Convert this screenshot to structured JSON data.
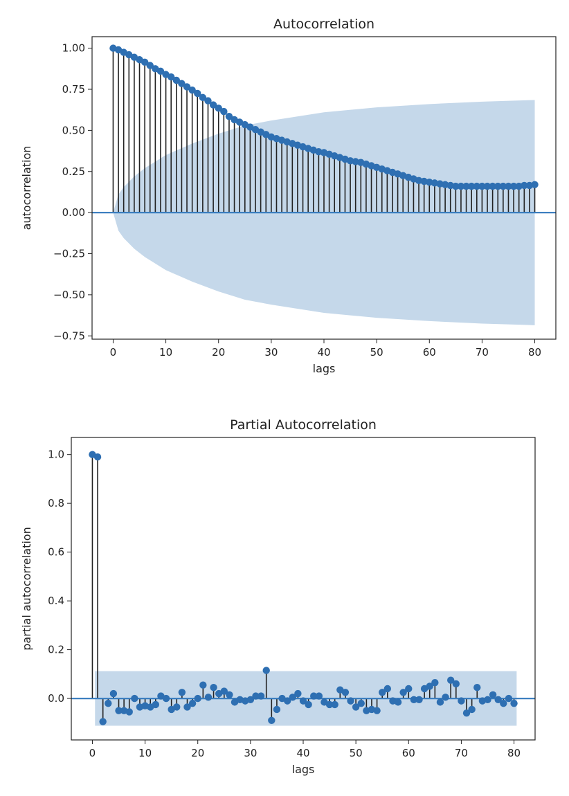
{
  "chart_data": [
    {
      "type": "stem",
      "title": "Autocorrelation",
      "xlabel": "lags",
      "ylabel": "autocorrelation",
      "xlim": [
        -4,
        84
      ],
      "ylim": [
        -0.77,
        1.07
      ],
      "xticks": [
        0,
        10,
        20,
        30,
        40,
        50,
        60,
        70,
        80
      ],
      "yticks": [
        -0.75,
        -0.5,
        -0.25,
        0.0,
        0.25,
        0.5,
        0.75,
        1.0
      ],
      "ytick_labels": [
        "−0.75",
        "−0.50",
        "−0.25",
        "0.00",
        "0.25",
        "0.50",
        "0.75",
        "1.00"
      ],
      "x": [
        0,
        1,
        2,
        3,
        4,
        5,
        6,
        7,
        8,
        9,
        10,
        11,
        12,
        13,
        14,
        15,
        16,
        17,
        18,
        19,
        20,
        21,
        22,
        23,
        24,
        25,
        26,
        27,
        28,
        29,
        30,
        31,
        32,
        33,
        34,
        35,
        36,
        37,
        38,
        39,
        40,
        41,
        42,
        43,
        44,
        45,
        46,
        47,
        48,
        49,
        50,
        51,
        52,
        53,
        54,
        55,
        56,
        57,
        58,
        59,
        60,
        61,
        62,
        63,
        64,
        65,
        66,
        67,
        68,
        69,
        70,
        71,
        72,
        73,
        74,
        75,
        76,
        77,
        78,
        79,
        80
      ],
      "values": [
        1.0,
        0.99,
        0.975,
        0.96,
        0.945,
        0.93,
        0.915,
        0.895,
        0.875,
        0.86,
        0.84,
        0.825,
        0.805,
        0.785,
        0.765,
        0.745,
        0.725,
        0.7,
        0.68,
        0.655,
        0.635,
        0.615,
        0.585,
        0.565,
        0.55,
        0.535,
        0.52,
        0.505,
        0.49,
        0.475,
        0.46,
        0.45,
        0.44,
        0.43,
        0.42,
        0.41,
        0.4,
        0.39,
        0.38,
        0.37,
        0.365,
        0.355,
        0.345,
        0.335,
        0.325,
        0.315,
        0.31,
        0.305,
        0.295,
        0.285,
        0.275,
        0.265,
        0.255,
        0.245,
        0.235,
        0.225,
        0.215,
        0.205,
        0.195,
        0.19,
        0.185,
        0.18,
        0.175,
        0.17,
        0.165,
        0.16,
        0.16,
        0.16,
        0.16,
        0.16,
        0.16,
        0.16,
        0.16,
        0.16,
        0.16,
        0.16,
        0.16,
        0.16,
        0.165,
        0.165,
        0.17
      ],
      "confidence_band": {
        "x": [
          0,
          1,
          2,
          4,
          6,
          8,
          10,
          15,
          20,
          25,
          30,
          40,
          50,
          60,
          70,
          80
        ],
        "upper": [
          0.0,
          0.11,
          0.155,
          0.22,
          0.27,
          0.31,
          0.35,
          0.42,
          0.48,
          0.53,
          0.56,
          0.61,
          0.64,
          0.66,
          0.675,
          0.685
        ],
        "lower": [
          0.0,
          -0.11,
          -0.155,
          -0.22,
          -0.27,
          -0.31,
          -0.35,
          -0.42,
          -0.48,
          -0.53,
          -0.56,
          -0.61,
          -0.64,
          -0.66,
          -0.675,
          -0.685
        ]
      },
      "colors": {
        "marker": "#2e6fb2",
        "stem": "#222222",
        "band": "#c5d8ea",
        "baseline": "#3c7fc0"
      }
    },
    {
      "type": "stem",
      "title": "Partial Autocorrelation",
      "xlabel": "lags",
      "ylabel": "partial autocorrelation",
      "xlim": [
        -4,
        84
      ],
      "ylim": [
        -0.17,
        1.07
      ],
      "xticks": [
        0,
        10,
        20,
        30,
        40,
        50,
        60,
        70,
        80
      ],
      "yticks": [
        0.0,
        0.2,
        0.4,
        0.6,
        0.8,
        1.0
      ],
      "ytick_labels": [
        "0.0",
        "0.2",
        "0.4",
        "0.6",
        "0.8",
        "1.0"
      ],
      "x": [
        0,
        1,
        2,
        3,
        4,
        5,
        6,
        7,
        8,
        9,
        10,
        11,
        12,
        13,
        14,
        15,
        16,
        17,
        18,
        19,
        20,
        21,
        22,
        23,
        24,
        25,
        26,
        27,
        28,
        29,
        30,
        31,
        32,
        33,
        34,
        35,
        36,
        37,
        38,
        39,
        40,
        41,
        42,
        43,
        44,
        45,
        46,
        47,
        48,
        49,
        50,
        51,
        52,
        53,
        54,
        55,
        56,
        57,
        58,
        59,
        60,
        61,
        62,
        63,
        64,
        65,
        66,
        67,
        68,
        69,
        70,
        71,
        72,
        73,
        74,
        75,
        76,
        77,
        78,
        79,
        80
      ],
      "values": [
        1.0,
        0.99,
        -0.095,
        -0.02,
        0.02,
        -0.05,
        -0.05,
        -0.055,
        0.0,
        -0.035,
        -0.03,
        -0.035,
        -0.025,
        0.01,
        0.0,
        -0.045,
        -0.035,
        0.025,
        -0.035,
        -0.02,
        0.0,
        0.055,
        0.005,
        0.045,
        0.02,
        0.03,
        0.015,
        -0.015,
        -0.005,
        -0.01,
        -0.005,
        0.01,
        0.01,
        0.115,
        -0.09,
        -0.045,
        0.0,
        -0.01,
        0.005,
        0.02,
        -0.01,
        -0.025,
        0.01,
        0.01,
        -0.015,
        -0.025,
        -0.025,
        0.035,
        0.025,
        -0.01,
        -0.035,
        -0.02,
        -0.05,
        -0.045,
        -0.05,
        0.025,
        0.04,
        -0.01,
        -0.015,
        0.025,
        0.04,
        -0.005,
        -0.005,
        0.04,
        0.05,
        0.065,
        -0.015,
        0.005,
        0.075,
        0.06,
        -0.01,
        -0.06,
        -0.045,
        0.045,
        -0.01,
        -0.005,
        0.015,
        -0.005,
        -0.02,
        0.0,
        -0.02
      ],
      "confidence_band": {
        "x": [
          0.5,
          80.5
        ],
        "upper": [
          0.112,
          0.112
        ],
        "lower": [
          -0.112,
          -0.112
        ]
      },
      "colors": {
        "marker": "#2e6fb2",
        "stem": "#222222",
        "band": "#c5d8ea",
        "baseline": "#3c7fc0"
      }
    }
  ]
}
